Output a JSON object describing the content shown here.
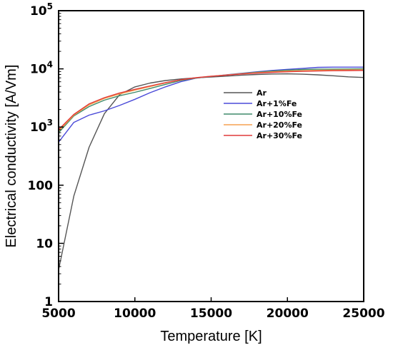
{
  "chart_data": {
    "type": "line",
    "xlabel": "Temperature [K]",
    "ylabel": "Electrical conductivity [A/Vm]",
    "xlim": [
      5000,
      25000
    ],
    "ylim": [
      1,
      100000
    ],
    "yscale": "log",
    "grid": false,
    "legend_position": "center-right",
    "x_ticks": [
      "5000",
      "10000",
      "15000",
      "20000",
      "25000"
    ],
    "y_ticks": [
      {
        "value": 1,
        "base": "1",
        "exp": ""
      },
      {
        "value": 10,
        "base": "10",
        "exp": ""
      },
      {
        "value": 100,
        "base": "100",
        "exp": ""
      },
      {
        "value": 1000,
        "base": "10",
        "exp": "3"
      },
      {
        "value": 10000,
        "base": "10",
        "exp": "4"
      },
      {
        "value": 100000,
        "base": "10",
        "exp": "5"
      }
    ],
    "series": [
      {
        "name": "Ar",
        "color": "#555555",
        "x": [
          5000,
          6000,
          7000,
          8000,
          9000,
          10000,
          11000,
          12000,
          13000,
          14000,
          15000,
          16000,
          17000,
          18000,
          19000,
          20000,
          21000,
          22000,
          23000,
          24000,
          25000
        ],
        "y": [
          3.5,
          65,
          450,
          1700,
          3600,
          4900,
          5700,
          6300,
          6700,
          7000,
          7250,
          7500,
          7800,
          8000,
          8150,
          8200,
          8100,
          7900,
          7600,
          7300,
          7100
        ]
      },
      {
        "name": "Ar+1%Fe",
        "color": "#4a4ad8",
        "x": [
          5000,
          6000,
          7000,
          8000,
          9000,
          10000,
          11000,
          12000,
          13000,
          14000,
          15000,
          16000,
          17000,
          18000,
          19000,
          20000,
          21000,
          22000,
          23000,
          24000,
          25000
        ],
        "y": [
          550,
          1200,
          1600,
          1900,
          2350,
          3000,
          3900,
          4900,
          6000,
          6900,
          7400,
          7900,
          8400,
          8900,
          9400,
          9800,
          10200,
          10600,
          10700,
          10700,
          10700
        ]
      },
      {
        "name": "Ar+10%Fe",
        "color": "#3f8a6a",
        "x": [
          5000,
          6000,
          7000,
          8000,
          9000,
          10000,
          11000,
          12000,
          13000,
          14000,
          15000,
          16000,
          17000,
          18000,
          19000,
          20000,
          21000,
          22000,
          23000,
          24000,
          25000
        ],
        "y": [
          800,
          1550,
          2250,
          2900,
          3450,
          3950,
          4600,
          5400,
          6300,
          6950,
          7400,
          7850,
          8300,
          8750,
          9150,
          9500,
          9750,
          9850,
          9900,
          9950,
          10000
        ]
      },
      {
        "name": "Ar+20%Fe",
        "color": "#f5a050",
        "x": [
          5000,
          6000,
          7000,
          8000,
          9000,
          10000,
          11000,
          12000,
          13000,
          14000,
          15000,
          16000,
          17000,
          18000,
          19000,
          20000,
          21000,
          22000,
          23000,
          24000,
          25000
        ],
        "y": [
          850,
          1600,
          2400,
          3100,
          3700,
          4300,
          4950,
          5700,
          6450,
          7000,
          7450,
          7850,
          8250,
          8600,
          8900,
          9150,
          9300,
          9450,
          9550,
          9600,
          9650
        ]
      },
      {
        "name": "Ar+30%Fe",
        "color": "#e03a3a",
        "x": [
          5000,
          6000,
          7000,
          8000,
          9000,
          10000,
          11000,
          12000,
          13000,
          14000,
          15000,
          16000,
          17000,
          18000,
          19000,
          20000,
          21000,
          22000,
          23000,
          24000,
          25000
        ],
        "y": [
          900,
          1650,
          2500,
          3200,
          3850,
          4450,
          5100,
          5800,
          6500,
          7050,
          7450,
          7800,
          8150,
          8450,
          8700,
          8900,
          9050,
          9200,
          9300,
          9350,
          9400
        ]
      }
    ]
  }
}
